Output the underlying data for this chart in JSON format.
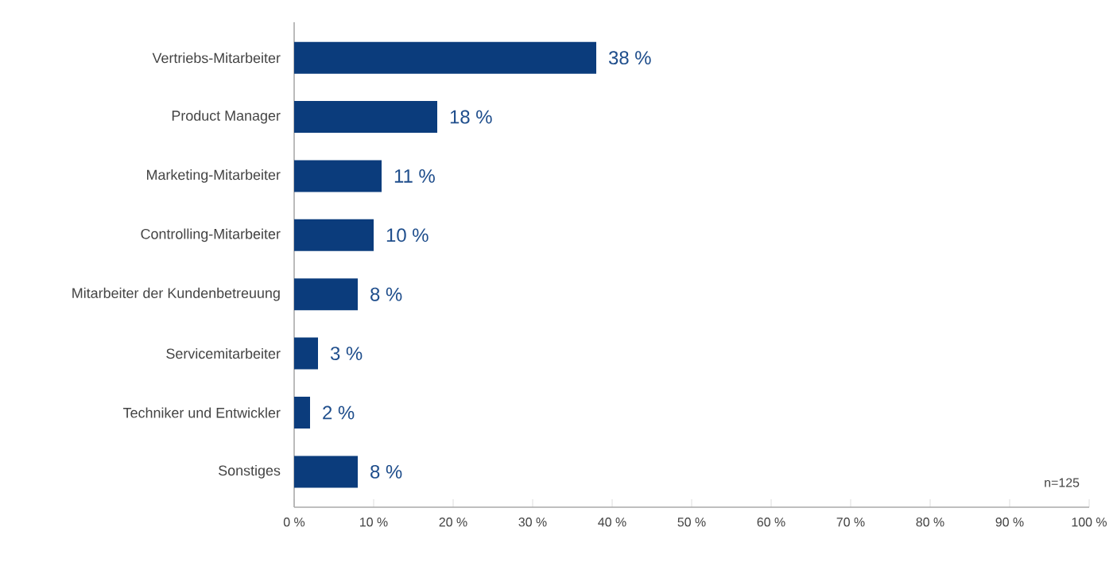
{
  "chart_data": {
    "type": "bar",
    "orientation": "horizontal",
    "categories": [
      "Vertriebs-Mitarbeiter",
      "Product Manager",
      "Marketing-Mitarbeiter",
      "Controlling-Mitarbeiter",
      "Mitarbeiter der Kundenbetreuung",
      "Servicemitarbeiter",
      "Techniker und Entwickler",
      "Sonstiges"
    ],
    "values": [
      38,
      18,
      11,
      10,
      8,
      3,
      2,
      8
    ],
    "value_labels": [
      "38 %",
      "18 %",
      "11 %",
      "10 %",
      "8 %",
      "3 %",
      "2 %",
      "8 %"
    ],
    "color": "#0b3c7c",
    "xlim": [
      0,
      100
    ],
    "xticks": [
      {
        "value": 0,
        "label": "0 %"
      },
      {
        "value": 10,
        "label": "10 %"
      },
      {
        "value": 20,
        "label": "20 %"
      },
      {
        "value": 30,
        "label": "30 %"
      },
      {
        "value": 40,
        "label": "40 %"
      },
      {
        "value": 50,
        "label": "50 %"
      },
      {
        "value": 60,
        "label": "60 %"
      },
      {
        "value": 70,
        "label": "70 %"
      },
      {
        "value": 80,
        "label": "80 %"
      },
      {
        "value": 90,
        "label": "90 %"
      },
      {
        "value": 100,
        "label": "100 %"
      }
    ],
    "annotations": [
      "n=125"
    ]
  }
}
